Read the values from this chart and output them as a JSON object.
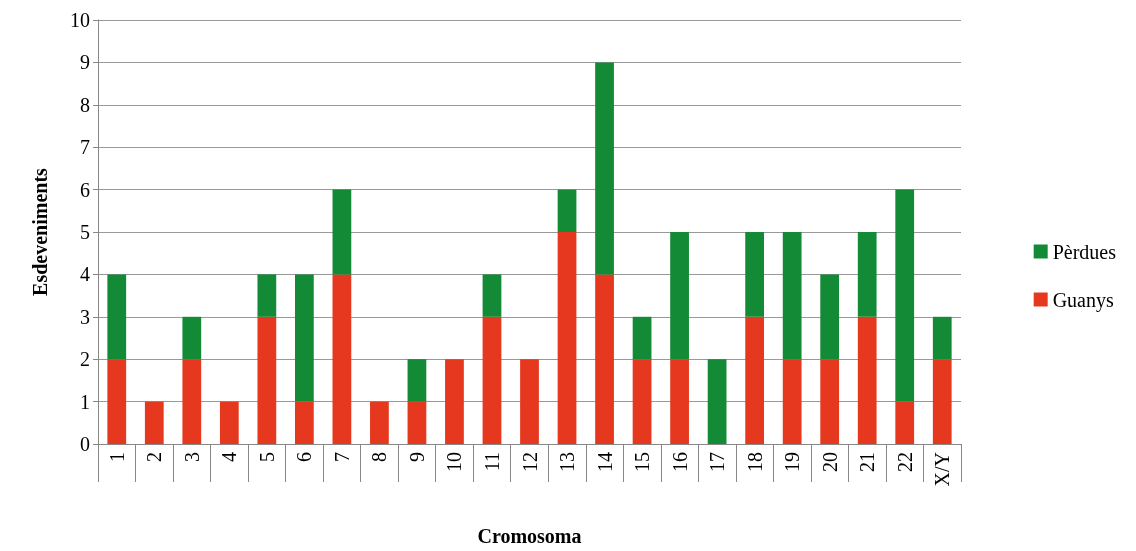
{
  "chart_data": {
    "type": "bar",
    "stacked": true,
    "xlabel": "Cromosoma",
    "ylabel": "Esdeveniments",
    "categories": [
      "1",
      "2",
      "3",
      "4",
      "5",
      "6",
      "7",
      "8",
      "9",
      "10",
      "11",
      "12",
      "13",
      "14",
      "15",
      "16",
      "17",
      "18",
      "19",
      "20",
      "21",
      "22",
      "X/Y"
    ],
    "series": [
      {
        "name": "Guanys",
        "color": "#e6381e",
        "values": [
          2,
          1,
          2,
          1,
          3,
          1,
          4,
          1,
          1,
          2,
          3,
          2,
          5,
          4,
          2,
          2,
          0,
          3,
          2,
          2,
          3,
          1,
          2
        ]
      },
      {
        "name": "Pèrdues",
        "color": "#138a35",
        "values": [
          2,
          0,
          1,
          0,
          1,
          3,
          2,
          0,
          1,
          0,
          1,
          0,
          1,
          5,
          1,
          3,
          2,
          2,
          3,
          2,
          2,
          5,
          1
        ]
      }
    ],
    "ylim": [
      0,
      10
    ],
    "yticks": [
      0,
      1,
      2,
      3,
      4,
      5,
      6,
      7,
      8,
      9,
      10
    ],
    "grid": "y",
    "legend": "right"
  }
}
